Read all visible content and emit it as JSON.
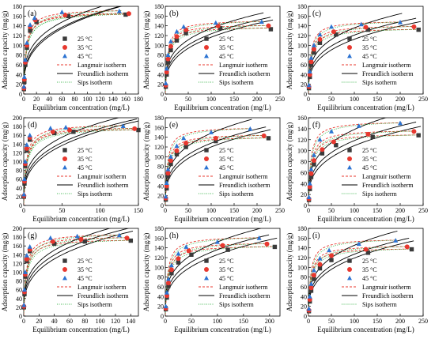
{
  "figure": {
    "ylabel": "Adsorption capacity (mg/g)",
    "xlabel": "Equilibrium concentration (mg/L)",
    "legend": [
      "25 °C",
      "35 °C",
      "45 °C",
      "Langmuir isotherm",
      "Freundlich isotherm",
      "Sips isotherm"
    ],
    "colors": {
      "25": "#3a3a3a",
      "35": "#e8382f",
      "45": "#2c73d2",
      "langmuir": "#e8382f",
      "freundlich": "#000000",
      "sips": "#39b54a"
    }
  },
  "chart_data": [
    {
      "id": "a",
      "label": "(a)",
      "type": "scatter",
      "xlim": [
        0,
        180
      ],
      "ylim": [
        0,
        180
      ],
      "xticks": [
        0,
        20,
        40,
        60,
        80,
        100,
        120,
        140,
        160,
        180
      ],
      "yticks": [
        0,
        20,
        40,
        60,
        80,
        100,
        120,
        140,
        160,
        180
      ],
      "series": [
        {
          "name": "25 °C",
          "x": [
            0.3,
            1,
            2.5,
            5,
            10,
            20,
            70,
            160
          ],
          "y": [
            10,
            25,
            60,
            95,
            130,
            148,
            160,
            163
          ]
        },
        {
          "name": "35 °C",
          "x": [
            0.3,
            1,
            2.5,
            5,
            10,
            18,
            65,
            165
          ],
          "y": [
            12,
            30,
            65,
            100,
            138,
            152,
            162,
            165
          ]
        },
        {
          "name": "45 °C",
          "x": [
            0.3,
            1,
            2.5,
            5,
            10,
            17,
            60,
            150
          ],
          "y": [
            15,
            35,
            70,
            105,
            142,
            156,
            168,
            170
          ]
        }
      ]
    },
    {
      "id": "b",
      "label": "(b)",
      "type": "scatter",
      "xlim": [
        0,
        250
      ],
      "ylim": [
        0,
        180
      ],
      "xticks": [
        0,
        50,
        100,
        150,
        200,
        250
      ],
      "yticks": [
        0,
        20,
        40,
        60,
        80,
        100,
        120,
        140,
        160,
        180
      ],
      "series": [
        {
          "name": "25 °C",
          "x": [
            1,
            3,
            6,
            12,
            25,
            45,
            120,
            230
          ],
          "y": [
            15,
            40,
            65,
            90,
            110,
            125,
            135,
            133
          ]
        },
        {
          "name": "35 °C",
          "x": [
            1,
            3,
            6,
            12,
            25,
            45,
            115,
            225
          ],
          "y": [
            18,
            45,
            72,
            98,
            118,
            132,
            140,
            140
          ]
        },
        {
          "name": "45 °C",
          "x": [
            1,
            3,
            6,
            12,
            25,
            40,
            110,
            210
          ],
          "y": [
            22,
            52,
            80,
            108,
            128,
            138,
            146,
            148
          ]
        }
      ]
    },
    {
      "id": "c",
      "label": "(c)",
      "type": "scatter",
      "xlim": [
        0,
        250
      ],
      "ylim": [
        0,
        180
      ],
      "xticks": [
        0,
        50,
        100,
        150,
        200,
        250
      ],
      "yticks": [
        0,
        20,
        40,
        60,
        80,
        100,
        120,
        140,
        160,
        180
      ],
      "series": [
        {
          "name": "25 °C",
          "x": [
            1,
            3,
            6,
            12,
            25,
            60,
            130,
            240
          ],
          "y": [
            12,
            35,
            60,
            85,
            105,
            122,
            132,
            132
          ]
        },
        {
          "name": "35 °C",
          "x": [
            1,
            3,
            6,
            12,
            25,
            55,
            125,
            230
          ],
          "y": [
            15,
            40,
            66,
            92,
            112,
            128,
            137,
            138
          ]
        },
        {
          "name": "45 °C",
          "x": [
            1,
            3,
            6,
            12,
            25,
            50,
            115,
            200
          ],
          "y": [
            18,
            46,
            74,
            100,
            122,
            138,
            143,
            147
          ]
        }
      ]
    },
    {
      "id": "d",
      "label": "(d)",
      "type": "scatter",
      "xlim": [
        0,
        150
      ],
      "ylim": [
        0,
        200
      ],
      "xticks": [
        0,
        50,
        100,
        150
      ],
      "yticks": [
        0,
        20,
        40,
        60,
        80,
        100,
        120,
        140,
        160,
        180,
        200
      ],
      "series": [
        {
          "name": "25 °C",
          "x": [
            0.3,
            1,
            2,
            4,
            8,
            40,
            65,
            150
          ],
          "y": [
            20,
            50,
            90,
            125,
            150,
            165,
            168,
            172
          ]
        },
        {
          "name": "35 °C",
          "x": [
            0.3,
            1,
            2,
            4,
            8,
            38,
            60,
            145
          ],
          "y": [
            22,
            55,
            95,
            130,
            155,
            168,
            172,
            175
          ]
        },
        {
          "name": "45 °C",
          "x": [
            0.3,
            1,
            2,
            4,
            8,
            35,
            55,
            130
          ],
          "y": [
            25,
            60,
            100,
            138,
            160,
            176,
            178,
            181
          ]
        }
      ]
    },
    {
      "id": "e",
      "label": "(e)",
      "type": "scatter",
      "xlim": [
        0,
        250
      ],
      "ylim": [
        0,
        180
      ],
      "xticks": [
        0,
        50,
        100,
        150,
        200,
        250
      ],
      "yticks": [
        0,
        20,
        40,
        60,
        80,
        100,
        120,
        140,
        160,
        180
      ],
      "series": [
        {
          "name": "25 °C",
          "x": [
            1,
            3,
            6,
            12,
            25,
            45,
            110,
            225
          ],
          "y": [
            12,
            35,
            60,
            85,
            105,
            120,
            132,
            138
          ]
        },
        {
          "name": "35 °C",
          "x": [
            1,
            3,
            6,
            12,
            25,
            45,
            110,
            215
          ],
          "y": [
            15,
            40,
            66,
            92,
            112,
            128,
            138,
            143
          ]
        },
        {
          "name": "45 °C",
          "x": [
            1,
            3,
            6,
            12,
            25,
            40,
            100,
            185
          ],
          "y": [
            18,
            46,
            74,
            100,
            122,
            138,
            150,
            157
          ]
        }
      ]
    },
    {
      "id": "f",
      "label": "(f)",
      "type": "scatter",
      "xlim": [
        0,
        250
      ],
      "ylim": [
        0,
        160
      ],
      "xticks": [
        0,
        50,
        100,
        150,
        200,
        250
      ],
      "yticks": [
        0,
        20,
        40,
        60,
        80,
        100,
        120,
        140,
        160
      ],
      "series": [
        {
          "name": "25 °C",
          "x": [
            1,
            3,
            6,
            12,
            30,
            60,
            140,
            240
          ],
          "y": [
            10,
            30,
            52,
            75,
            95,
            110,
            125,
            128
          ]
        },
        {
          "name": "35 °C",
          "x": [
            1,
            3,
            6,
            12,
            30,
            55,
            130,
            230
          ],
          "y": [
            12,
            34,
            58,
            82,
            102,
            116,
            130,
            135
          ]
        },
        {
          "name": "45 °C",
          "x": [
            1,
            3,
            6,
            12,
            25,
            50,
            110,
            200
          ],
          "y": [
            15,
            40,
            66,
            92,
            120,
            135,
            145,
            150
          ]
        }
      ]
    },
    {
      "id": "g",
      "label": "(g)",
      "type": "scatter",
      "xlim": [
        0,
        150
      ],
      "ylim": [
        0,
        200
      ],
      "xticks": [
        0,
        20,
        40,
        60,
        80,
        100,
        120,
        140
      ],
      "yticks": [
        0,
        20,
        40,
        60,
        80,
        100,
        120,
        140,
        160,
        180,
        200
      ],
      "series": [
        {
          "name": "25 °C",
          "x": [
            0.3,
            1,
            2,
            4,
            8,
            40,
            80,
            140
          ],
          "y": [
            20,
            50,
            90,
            125,
            148,
            165,
            170,
            172
          ]
        },
        {
          "name": "35 °C",
          "x": [
            0.3,
            1,
            2,
            4,
            8,
            38,
            75,
            135
          ],
          "y": [
            22,
            55,
            95,
            130,
            152,
            170,
            175,
            178
          ]
        },
        {
          "name": "45 °C",
          "x": [
            0.3,
            1,
            2,
            4,
            8,
            35,
            70,
            125
          ],
          "y": [
            25,
            60,
            100,
            138,
            158,
            178,
            182,
            184
          ]
        }
      ]
    },
    {
      "id": "h",
      "label": "(h)",
      "type": "scatter",
      "xlim": [
        0,
        220
      ],
      "ylim": [
        0,
        180
      ],
      "xticks": [
        0,
        50,
        100,
        150,
        200
      ],
      "yticks": [
        0,
        20,
        40,
        60,
        80,
        100,
        120,
        140,
        160,
        180
      ],
      "series": [
        {
          "name": "25 °C",
          "x": [
            1,
            3,
            6,
            12,
            25,
            50,
            120,
            210
          ],
          "y": [
            14,
            38,
            62,
            88,
            110,
            126,
            136,
            142
          ]
        },
        {
          "name": "35 °C",
          "x": [
            1,
            3,
            6,
            12,
            25,
            45,
            110,
            195
          ],
          "y": [
            16,
            42,
            68,
            95,
            118,
            134,
            145,
            148
          ]
        },
        {
          "name": "45 °C",
          "x": [
            1,
            3,
            6,
            12,
            25,
            40,
            100,
            180
          ],
          "y": [
            20,
            48,
            76,
            104,
            128,
            142,
            152,
            160
          ]
        }
      ]
    },
    {
      "id": "i",
      "label": "(i)",
      "type": "scatter",
      "xlim": [
        0,
        250
      ],
      "ylim": [
        0,
        180
      ],
      "xticks": [
        0,
        50,
        100,
        150,
        200,
        250
      ],
      "yticks": [
        0,
        20,
        40,
        60,
        80,
        100,
        120,
        140,
        160,
        180
      ],
      "series": [
        {
          "name": "25 °C",
          "x": [
            1,
            3,
            6,
            12,
            25,
            50,
            130,
            225
          ],
          "y": [
            10,
            30,
            52,
            76,
            98,
            115,
            130,
            137
          ]
        },
        {
          "name": "35 °C",
          "x": [
            1,
            3,
            6,
            12,
            25,
            50,
            125,
            215
          ],
          "y": [
            12,
            34,
            58,
            84,
            106,
            124,
            137,
            142
          ]
        },
        {
          "name": "45 °C",
          "x": [
            1,
            3,
            6,
            12,
            25,
            45,
            110,
            190
          ],
          "y": [
            15,
            40,
            66,
            94,
            118,
            135,
            148,
            155
          ]
        }
      ]
    }
  ]
}
